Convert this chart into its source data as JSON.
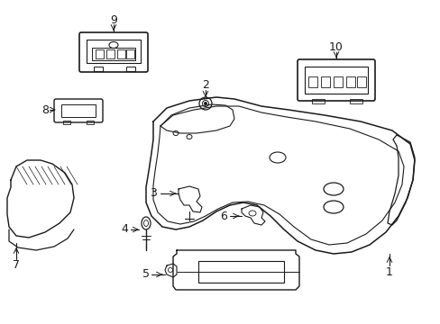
{
  "bg": "#ffffff",
  "lc": "#1a1a1a",
  "lw": 1.0,
  "figsize": [
    4.89,
    3.6
  ],
  "dpi": 100
}
